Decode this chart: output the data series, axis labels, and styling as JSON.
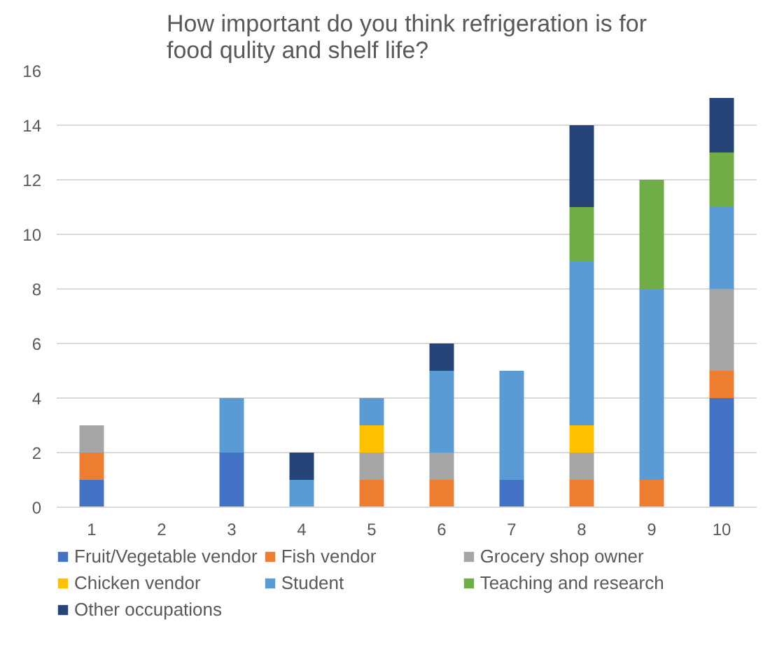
{
  "chart_data": {
    "type": "bar",
    "title": "How important do you think refrigeration is for\nfood qulity and shelf life?",
    "categories": [
      "1",
      "2",
      "3",
      "4",
      "5",
      "6",
      "7",
      "8",
      "9",
      "10"
    ],
    "stacked": true,
    "ylim": [
      0,
      16
    ],
    "yticks": [
      0,
      2,
      4,
      6,
      8,
      10,
      12,
      14,
      16
    ],
    "grid": "y",
    "legend": "bottom",
    "series": [
      {
        "name": "Fruit/Vegetable vendor",
        "color": "#4472c4",
        "values": [
          1,
          null,
          2,
          null,
          null,
          null,
          1,
          null,
          null,
          4
        ]
      },
      {
        "name": "Fish vendor",
        "color": "#ed7d31",
        "values": [
          1,
          null,
          null,
          null,
          1,
          1,
          null,
          1,
          1,
          1
        ]
      },
      {
        "name": "Grocery shop owner",
        "color": "#a5a5a5",
        "values": [
          1,
          null,
          null,
          null,
          1,
          1,
          null,
          1,
          null,
          3
        ]
      },
      {
        "name": "Chicken vendor",
        "color": "#ffc000",
        "values": [
          null,
          null,
          null,
          null,
          1,
          null,
          null,
          1,
          null,
          null
        ]
      },
      {
        "name": "Student",
        "color": "#5b9bd5",
        "values": [
          null,
          null,
          2,
          1,
          1,
          3,
          4,
          6,
          7,
          3
        ]
      },
      {
        "name": "Teaching and research",
        "color": "#70ad47",
        "values": [
          null,
          null,
          null,
          null,
          null,
          null,
          null,
          2,
          4,
          2
        ]
      },
      {
        "name": "Other occupations",
        "color": "#264478",
        "values": [
          null,
          null,
          null,
          1,
          null,
          1,
          null,
          3,
          null,
          2
        ]
      }
    ]
  }
}
